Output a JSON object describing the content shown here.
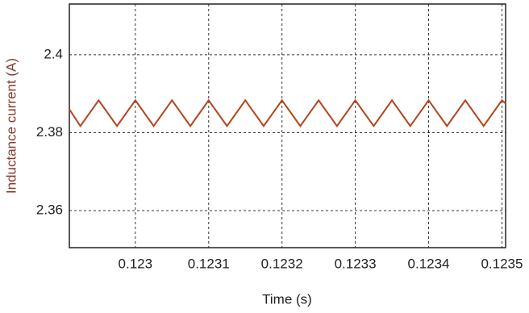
{
  "chart_data": {
    "type": "line",
    "xlabel": "Time (s)",
    "ylabel": "Inductance current (A)",
    "x": [
      0.12291,
      0.122925,
      0.12295,
      0.122975,
      0.123,
      0.123025,
      0.12305,
      0.123075,
      0.1231,
      0.123125,
      0.12315,
      0.123175,
      0.1232,
      0.123225,
      0.12325,
      0.123275,
      0.1233,
      0.123325,
      0.12335,
      0.123375,
      0.1234,
      0.123425,
      0.12345,
      0.123475,
      0.1235,
      0.123505
    ],
    "series": [
      {
        "color": "#b5441e",
        "values": [
          2.386,
          2.3817,
          2.3883,
          2.3817,
          2.3883,
          2.3817,
          2.3883,
          2.3817,
          2.3883,
          2.3817,
          2.3883,
          2.3817,
          2.3883,
          2.3817,
          2.3883,
          2.3817,
          2.3883,
          2.3817,
          2.3883,
          2.3817,
          2.3883,
          2.3817,
          2.3883,
          2.3817,
          2.3883,
          2.3875
        ]
      }
    ],
    "xlim": [
      0.12291,
      0.123505
    ],
    "ylim": [
      2.3505,
      2.413
    ],
    "xticks": [
      0.123,
      0.1231,
      0.1232,
      0.1233,
      0.1234,
      0.1235
    ],
    "yticks": [
      2.36,
      2.38,
      2.4
    ],
    "grid": true
  }
}
